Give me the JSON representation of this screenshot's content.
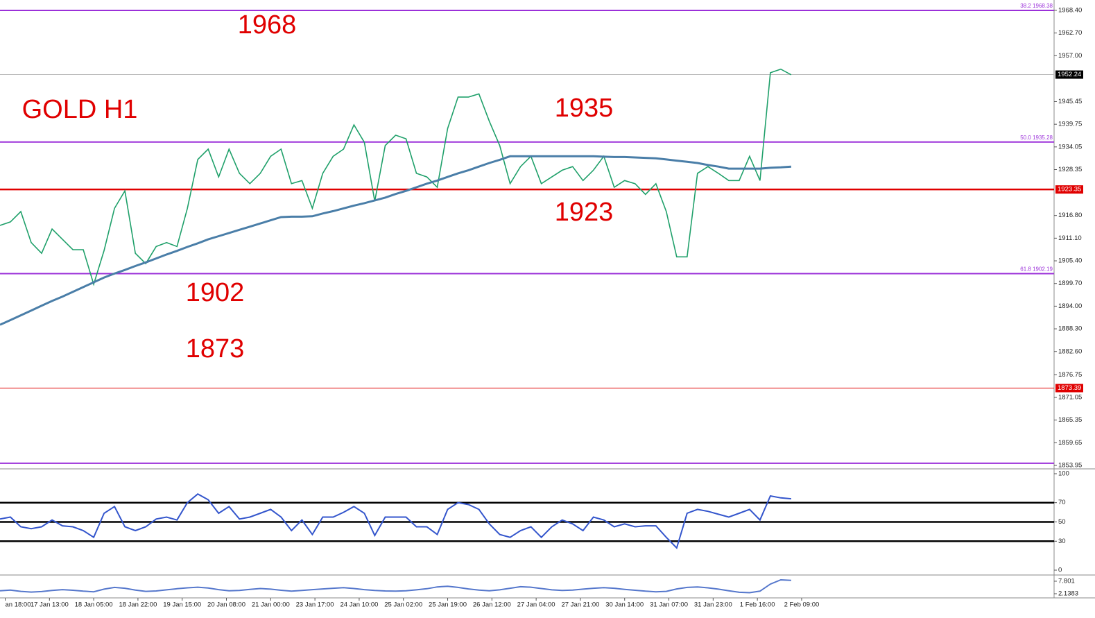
{
  "chart_data": [
    {
      "type": "line",
      "annotations": [
        "1968",
        "GOLD H1",
        "1935",
        "1923",
        "1902",
        "1873"
      ],
      "xlim": [
        0,
        405
      ],
      "x": [
        0,
        4,
        8,
        12,
        16,
        20,
        24,
        28,
        32,
        36,
        40,
        44,
        48,
        52,
        56,
        60,
        64,
        68,
        72,
        76,
        80,
        84,
        88,
        92,
        96,
        100,
        104,
        108,
        112,
        116,
        120,
        124,
        128,
        132,
        136,
        140,
        144,
        148,
        152,
        156,
        160,
        164,
        168,
        172,
        176,
        180,
        184,
        188,
        192,
        196,
        200,
        204,
        208,
        212,
        216,
        220,
        224,
        228,
        232,
        236,
        240,
        244,
        248,
        252,
        256,
        260,
        264,
        268,
        272,
        276,
        280,
        284,
        288,
        292,
        296,
        300,
        304
      ],
      "xticks": [
        {
          "value": 2,
          "label": "an 18:00"
        },
        {
          "value": 19,
          "label": "17 Jan 13:00"
        },
        {
          "value": 36,
          "label": "18 Jan 05:00"
        },
        {
          "value": 53,
          "label": "18 Jan 22:00"
        },
        {
          "value": 70,
          "label": "19 Jan 15:00"
        },
        {
          "value": 87,
          "label": "20 Jan 08:00"
        },
        {
          "value": 104,
          "label": "21 Jan 00:00"
        },
        {
          "value": 121,
          "label": "23 Jan 17:00"
        },
        {
          "value": 138,
          "label": "24 Jan 10:00"
        },
        {
          "value": 155,
          "label": "25 Jan 02:00"
        },
        {
          "value": 172,
          "label": "25 Jan 19:00"
        },
        {
          "value": 189,
          "label": "26 Jan 12:00"
        },
        {
          "value": 206,
          "label": "27 Jan 04:00"
        },
        {
          "value": 223,
          "label": "27 Jan 21:00"
        },
        {
          "value": 240,
          "label": "30 Jan 14:00"
        },
        {
          "value": 257,
          "label": "31 Jan 07:00"
        },
        {
          "value": 274,
          "label": "31 Jan 23:00"
        },
        {
          "value": 291,
          "label": "1 Feb 16:00"
        },
        {
          "value": 308,
          "label": "2 Feb 09:00"
        }
      ],
      "ylim": [
        1853.25,
        1971.0
      ],
      "yticks": [
        {
          "value": 1968.4,
          "label": "1968.40"
        },
        {
          "value": 1962.7,
          "label": "1962.70"
        },
        {
          "value": 1957.0,
          "label": "1957.00"
        },
        {
          "value": 1945.45,
          "label": "1945.45"
        },
        {
          "value": 1939.75,
          "label": "1939.75"
        },
        {
          "value": 1934.05,
          "label": "1934.05"
        },
        {
          "value": 1928.35,
          "label": "1928.35"
        },
        {
          "value": 1916.8,
          "label": "1916.80"
        },
        {
          "value": 1911.1,
          "label": "1911.10"
        },
        {
          "value": 1905.4,
          "label": "1905.40"
        },
        {
          "value": 1899.7,
          "label": "1899.70"
        },
        {
          "value": 1894.0,
          "label": "1894.00"
        },
        {
          "value": 1888.3,
          "label": "1888.30"
        },
        {
          "value": 1882.6,
          "label": "1882.60"
        },
        {
          "value": 1876.75,
          "label": "1876.75"
        },
        {
          "value": 1871.05,
          "label": "1871.05"
        },
        {
          "value": 1865.35,
          "label": "1865.35"
        },
        {
          "value": 1859.65,
          "label": "1859.65"
        },
        {
          "value": 1853.95,
          "label": "1853.95"
        }
      ],
      "levels": [
        {
          "value": 1968.38,
          "label": "38.2 1968.38",
          "color": "#9b30d9"
        },
        {
          "value": 1935.28,
          "label": "50.0 1935.28",
          "color": "#9b30d9"
        },
        {
          "value": 1902.19,
          "label": "61.8 1902.19",
          "color": "#9b30d9"
        },
        {
          "value": 1854.5,
          "color": "#9b30d9"
        }
      ],
      "price_lines": [
        {
          "value": 1952.24,
          "color": "#b8b8b8",
          "box": "#000000",
          "line_width": 1
        },
        {
          "value": 1923.35,
          "color": "#e00000",
          "box": "#e00000",
          "line_width": 2.5
        },
        {
          "value": 1873.39,
          "color": "#e00000",
          "box": "#e00000",
          "line_width": 1
        }
      ],
      "series": [
        {
          "color": "#1fa06a",
          "values": [
            1914.3,
            1915.2,
            1917.8,
            1910.0,
            1907.3,
            1913.4,
            1910.8,
            1908.2,
            1908.2,
            1899.5,
            1908.0,
            1918.6,
            1923.0,
            1907.3,
            1904.7,
            1909.0,
            1910.0,
            1909.0,
            1918.6,
            1930.9,
            1933.5,
            1926.5,
            1933.5,
            1927.4,
            1924.8,
            1927.4,
            1931.7,
            1933.5,
            1924.8,
            1925.6,
            1918.6,
            1927.4,
            1931.7,
            1933.5,
            1939.6,
            1935.2,
            1920.4,
            1934.4,
            1937.0,
            1936.1,
            1927.4,
            1926.5,
            1923.9,
            1938.7,
            1946.6,
            1946.6,
            1947.4,
            1940.5,
            1934.4,
            1924.8,
            1929.1,
            1931.7,
            1924.8,
            1926.5,
            1928.2,
            1929.1,
            1925.6,
            1928.2,
            1931.7,
            1923.9,
            1925.6,
            1924.8,
            1922.1,
            1924.8,
            1917.8,
            1906.4,
            1906.4,
            1927.4,
            1929.1,
            1927.4,
            1925.6,
            1925.6,
            1931.7,
            1925.6,
            1952.7,
            1953.6,
            1952.2
          ]
        },
        {
          "color": "#4a7ea8",
          "values": [
            1889.3,
            1890.5,
            1891.7,
            1892.9,
            1894.1,
            1895.3,
            1896.4,
            1897.6,
            1898.8,
            1900.0,
            1901.2,
            1902.2,
            1903.1,
            1904.1,
            1905.0,
            1906.0,
            1907.0,
            1907.9,
            1908.9,
            1909.8,
            1910.8,
            1911.6,
            1912.4,
            1913.2,
            1914.0,
            1914.8,
            1915.6,
            1916.4,
            1916.5,
            1916.5,
            1916.6,
            1917.3,
            1917.9,
            1918.6,
            1919.3,
            1919.9,
            1920.6,
            1921.3,
            1922.2,
            1923.0,
            1923.9,
            1924.8,
            1925.6,
            1926.5,
            1927.4,
            1928.2,
            1929.1,
            1930.0,
            1930.8,
            1931.7,
            1931.7,
            1931.7,
            1931.7,
            1931.7,
            1931.7,
            1931.7,
            1931.7,
            1931.7,
            1931.6,
            1931.5,
            1931.5,
            1931.4,
            1931.3,
            1931.2,
            1930.9,
            1930.6,
            1930.3,
            1930.0,
            1929.5,
            1929.1,
            1928.6,
            1928.6,
            1928.6,
            1928.6,
            1928.8,
            1928.9,
            1929.1
          ]
        }
      ]
    },
    {
      "type": "line",
      "xlim": [
        0,
        405
      ],
      "x": [
        0,
        4,
        8,
        12,
        16,
        20,
        24,
        28,
        32,
        36,
        40,
        44,
        48,
        52,
        56,
        60,
        64,
        68,
        72,
        76,
        80,
        84,
        88,
        92,
        96,
        100,
        104,
        108,
        112,
        116,
        120,
        124,
        128,
        132,
        136,
        140,
        144,
        148,
        152,
        156,
        160,
        164,
        168,
        172,
        176,
        180,
        184,
        188,
        192,
        196,
        200,
        204,
        208,
        212,
        216,
        220,
        224,
        228,
        232,
        236,
        240,
        244,
        248,
        252,
        256,
        260,
        264,
        268,
        272,
        276,
        280,
        284,
        288,
        292,
        296,
        300,
        304
      ],
      "ylim": [
        0,
        100
      ],
      "yticks": [
        100,
        70,
        50,
        30,
        0
      ],
      "levels": [
        70,
        50,
        30
      ],
      "series": [
        {
          "color": "#3355cc",
          "values": [
            53,
            55,
            45,
            43,
            45,
            52,
            46,
            45,
            41,
            34,
            59,
            66,
            45,
            41,
            45,
            53,
            55,
            52,
            70,
            79,
            73,
            59,
            66,
            53,
            55,
            59,
            63,
            55,
            41,
            52,
            37,
            55,
            55,
            60,
            66,
            59,
            36,
            55,
            55,
            55,
            45,
            45,
            37,
            63,
            70,
            68,
            63,
            48,
            37,
            34,
            41,
            45,
            34,
            45,
            52,
            48,
            41,
            55,
            52,
            45,
            48,
            45,
            46,
            46,
            34,
            23,
            59,
            63,
            61,
            58,
            55,
            59,
            63,
            52,
            77,
            75,
            74
          ]
        }
      ]
    },
    {
      "type": "line",
      "xlim": [
        0,
        405
      ],
      "x": [
        0,
        4,
        8,
        12,
        16,
        20,
        24,
        28,
        32,
        36,
        40,
        44,
        48,
        52,
        56,
        60,
        64,
        68,
        72,
        76,
        80,
        84,
        88,
        92,
        96,
        100,
        104,
        108,
        112,
        116,
        120,
        124,
        128,
        132,
        136,
        140,
        144,
        148,
        152,
        156,
        160,
        164,
        168,
        172,
        176,
        180,
        184,
        188,
        192,
        196,
        200,
        204,
        208,
        212,
        216,
        220,
        224,
        228,
        232,
        236,
        240,
        244,
        248,
        252,
        256,
        260,
        264,
        268,
        272,
        276,
        280,
        284,
        288,
        292,
        296,
        300,
        304
      ],
      "ylim": [
        0.25,
        10.3
      ],
      "yticks": [
        7.801,
        2.1383
      ],
      "series": [
        {
          "color": "#5577cc",
          "values": [
            3.5,
            3.8,
            3.2,
            2.9,
            3.1,
            3.6,
            4.0,
            3.7,
            3.3,
            3.0,
            4.2,
            5.0,
            4.6,
            3.8,
            3.2,
            3.4,
            3.9,
            4.4,
            4.8,
            5.1,
            4.7,
            4.0,
            3.5,
            3.6,
            4.1,
            4.5,
            4.2,
            3.7,
            3.3,
            3.6,
            4.0,
            4.3,
            4.6,
            4.9,
            4.5,
            4.0,
            3.6,
            3.4,
            3.3,
            3.5,
            3.9,
            4.4,
            5.2,
            5.5,
            5.0,
            4.3,
            3.8,
            3.5,
            3.9,
            4.6,
            5.3,
            5.1,
            4.5,
            3.9,
            3.6,
            3.8,
            4.2,
            4.6,
            4.9,
            4.6,
            4.1,
            3.7,
            3.3,
            3.0,
            3.2,
            4.3,
            5.0,
            5.2,
            4.8,
            4.2,
            3.5,
            2.8,
            2.6,
            3.3,
            6.5,
            8.4,
            8.2
          ]
        }
      ]
    }
  ]
}
